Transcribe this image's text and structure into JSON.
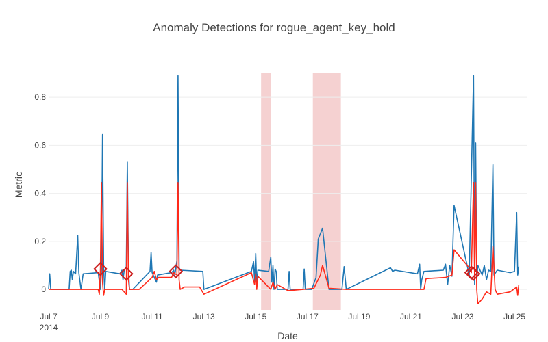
{
  "chart_data": {
    "type": "line",
    "title": "Anomaly Detections for rogue_agent_key_hold",
    "xlabel": "Date",
    "ylabel": "Metric",
    "xlim": [
      "2014-07-07",
      "2014-07-25 12:00"
    ],
    "ylim": [
      -0.085,
      0.9
    ],
    "x_ticks": [
      {
        "date": "2014-07-07",
        "label": "Jul 7",
        "sublabel": "2014"
      },
      {
        "date": "2014-07-09",
        "label": "Jul 9"
      },
      {
        "date": "2014-07-11",
        "label": "Jul 11"
      },
      {
        "date": "2014-07-13",
        "label": "Jul 13"
      },
      {
        "date": "2014-07-15",
        "label": "Jul 15"
      },
      {
        "date": "2014-07-17",
        "label": "Jul 17"
      },
      {
        "date": "2014-07-19",
        "label": "Jul 19"
      },
      {
        "date": "2014-07-21",
        "label": "Jul 21"
      },
      {
        "date": "2014-07-23",
        "label": "Jul 23"
      },
      {
        "date": "2014-07-25",
        "label": "Jul 25"
      }
    ],
    "y_ticks": [
      {
        "value": 0,
        "label": "0"
      },
      {
        "value": 0.2,
        "label": "0.2"
      },
      {
        "value": 0.4,
        "label": "0.4"
      },
      {
        "value": 0.6,
        "label": "0.6"
      },
      {
        "value": 0.8,
        "label": "0.8"
      }
    ],
    "grid": true,
    "colors": {
      "metric": "#1f77b4",
      "score": "#ff2a1a",
      "anomaly": "#cc1f1f",
      "shade": "#f4cccc",
      "grid": "#eeeeee"
    },
    "shaded_regions": [
      {
        "x0": "2014-07-15 05:00",
        "x1": "2014-07-15 14:00"
      },
      {
        "x0": "2014-07-17 05:00",
        "x1": "2014-07-18 07:00"
      }
    ],
    "series": [
      {
        "key": "metric",
        "points": [
          [
            "2014-07-07 00:00",
            0.0
          ],
          [
            "2014-07-07 01:00",
            0.065
          ],
          [
            "2014-07-07 02:00",
            0.0
          ],
          [
            "2014-07-07 19:00",
            0.0
          ],
          [
            "2014-07-07 20:00",
            0.075
          ],
          [
            "2014-07-07 21:00",
            0.08
          ],
          [
            "2014-07-07 22:00",
            0.04
          ],
          [
            "2014-07-07 23:00",
            0.075
          ],
          [
            "2014-07-08 01:00",
            0.065
          ],
          [
            "2014-07-08 03:00",
            0.225
          ],
          [
            "2014-07-08 04:00",
            0.07
          ],
          [
            "2014-07-08 06:00",
            0.0
          ],
          [
            "2014-07-08 08:00",
            0.065
          ],
          [
            "2014-07-08 22:00",
            0.07
          ],
          [
            "2014-07-09 00:00",
            0.0
          ],
          [
            "2014-07-09 01:00",
            0.085
          ],
          [
            "2014-07-09 02:00",
            0.645
          ],
          [
            "2014-07-09 03:00",
            0.09
          ],
          [
            "2014-07-09 04:00",
            0.0
          ],
          [
            "2014-07-09 05:00",
            0.075
          ],
          [
            "2014-07-09 18:00",
            0.065
          ],
          [
            "2014-07-09 20:00",
            0.08
          ],
          [
            "2014-07-09 21:00",
            0.04
          ],
          [
            "2014-07-09 22:00",
            0.075
          ],
          [
            "2014-07-10 00:00",
            0.095
          ],
          [
            "2014-07-10 01:00",
            0.53
          ],
          [
            "2014-07-10 02:00",
            0.09
          ],
          [
            "2014-07-10 03:00",
            0.0
          ],
          [
            "2014-07-10 06:00",
            0.0
          ],
          [
            "2014-07-10 22:00",
            0.075
          ],
          [
            "2014-07-10 23:00",
            0.155
          ],
          [
            "2014-07-11 00:00",
            0.07
          ],
          [
            "2014-07-11 04:00",
            0.03
          ],
          [
            "2014-07-11 05:00",
            0.06
          ],
          [
            "2014-07-11 18:00",
            0.07
          ],
          [
            "2014-07-11 20:00",
            0.08
          ],
          [
            "2014-07-11 21:00",
            0.06
          ],
          [
            "2014-07-11 23:00",
            0.12
          ],
          [
            "2014-07-12 00:00",
            0.89
          ],
          [
            "2014-07-12 01:00",
            0.09
          ],
          [
            "2014-07-12 02:00",
            0.08
          ],
          [
            "2014-07-12 23:00",
            0.075
          ],
          [
            "2014-07-13 00:00",
            0.0
          ],
          [
            "2014-07-14 20:00",
            0.075
          ],
          [
            "2014-07-14 22:00",
            0.115
          ],
          [
            "2014-07-14 23:00",
            0.035
          ],
          [
            "2014-07-15 00:00",
            0.15
          ],
          [
            "2014-07-15 01:00",
            0.02
          ],
          [
            "2014-07-15 02:00",
            0.08
          ],
          [
            "2014-07-15 12:00",
            0.075
          ],
          [
            "2014-07-15 14:00",
            0.135
          ],
          [
            "2014-07-15 15:00",
            0.03
          ],
          [
            "2014-07-15 16:00",
            0.1
          ],
          [
            "2014-07-15 17:00",
            0.0
          ],
          [
            "2014-07-15 18:00",
            0.085
          ],
          [
            "2014-07-15 19:00",
            0.075
          ],
          [
            "2014-07-15 20:00",
            0.0
          ],
          [
            "2014-07-16 06:00",
            0.0
          ],
          [
            "2014-07-16 07:00",
            0.075
          ],
          [
            "2014-07-16 08:00",
            0.0
          ],
          [
            "2014-07-16 20:00",
            0.0
          ],
          [
            "2014-07-16 21:00",
            0.085
          ],
          [
            "2014-07-16 22:00",
            0.0
          ],
          [
            "2014-07-17 04:00",
            0.0
          ],
          [
            "2014-07-17 08:00",
            0.05
          ],
          [
            "2014-07-17 10:00",
            0.21
          ],
          [
            "2014-07-17 14:00",
            0.255
          ],
          [
            "2014-07-17 20:00",
            0.0
          ],
          [
            "2014-07-18 08:00",
            0.0
          ],
          [
            "2014-07-18 10:00",
            0.095
          ],
          [
            "2014-07-18 12:00",
            0.0
          ],
          [
            "2014-07-20 05:00",
            0.09
          ],
          [
            "2014-07-20 07:00",
            0.075
          ],
          [
            "2014-07-20 09:00",
            0.08
          ],
          [
            "2014-07-21 06:00",
            0.065
          ],
          [
            "2014-07-21 08:00",
            0.105
          ],
          [
            "2014-07-21 09:00",
            0.0
          ],
          [
            "2014-07-21 10:00",
            0.04
          ],
          [
            "2014-07-21 12:00",
            0.075
          ],
          [
            "2014-07-22 06:00",
            0.08
          ],
          [
            "2014-07-22 08:00",
            0.105
          ],
          [
            "2014-07-22 10:00",
            0.02
          ],
          [
            "2014-07-22 12:00",
            0.1
          ],
          [
            "2014-07-22 14:00",
            0.055
          ],
          [
            "2014-07-22 16:00",
            0.35
          ],
          [
            "2014-07-23 06:00",
            0.06
          ],
          [
            "2014-07-23 10:00",
            0.89
          ],
          [
            "2014-07-23 11:00",
            0.02
          ],
          [
            "2014-07-23 12:00",
            0.61
          ],
          [
            "2014-07-23 13:00",
            0.04
          ],
          [
            "2014-07-23 14:00",
            0.1
          ],
          [
            "2014-07-23 18:00",
            0.06
          ],
          [
            "2014-07-23 20:00",
            0.1
          ],
          [
            "2014-07-23 22:00",
            0.04
          ],
          [
            "2014-07-24 00:00",
            0.08
          ],
          [
            "2014-07-24 02:00",
            0.075
          ],
          [
            "2014-07-24 04:00",
            0.52
          ],
          [
            "2014-07-24 05:00",
            0.06
          ],
          [
            "2014-07-24 08:00",
            0.08
          ],
          [
            "2014-07-24 20:00",
            0.07
          ],
          [
            "2014-07-25 00:00",
            0.075
          ],
          [
            "2014-07-25 02:00",
            0.32
          ],
          [
            "2014-07-25 03:00",
            0.06
          ],
          [
            "2014-07-25 04:00",
            0.095
          ]
        ]
      },
      {
        "key": "score",
        "points": [
          [
            "2014-07-07 00:00",
            0.0
          ],
          [
            "2014-07-08 22:00",
            0.0
          ],
          [
            "2014-07-08 23:00",
            -0.02
          ],
          [
            "2014-07-09 00:00",
            0.085
          ],
          [
            "2014-07-09 01:00",
            0.445
          ],
          [
            "2014-07-09 02:00",
            0.03
          ],
          [
            "2014-07-09 03:00",
            -0.025
          ],
          [
            "2014-07-09 04:00",
            0.0
          ],
          [
            "2014-07-09 20:00",
            0.0
          ],
          [
            "2014-07-10 00:00",
            -0.02
          ],
          [
            "2014-07-10 01:00",
            0.445
          ],
          [
            "2014-07-10 02:00",
            0.04
          ],
          [
            "2014-07-10 03:00",
            0.0
          ],
          [
            "2014-07-10 12:00",
            0.0
          ],
          [
            "2014-07-11 00:00",
            0.05
          ],
          [
            "2014-07-11 02:00",
            0.075
          ],
          [
            "2014-07-11 04:00",
            0.04
          ],
          [
            "2014-07-11 06:00",
            0.05
          ],
          [
            "2014-07-11 18:00",
            0.05
          ],
          [
            "2014-07-11 20:00",
            0.07
          ],
          [
            "2014-07-11 23:00",
            0.06
          ],
          [
            "2014-07-12 00:00",
            0.445
          ],
          [
            "2014-07-12 01:00",
            0.04
          ],
          [
            "2014-07-12 02:00",
            0.0
          ],
          [
            "2014-07-12 06:00",
            0.01
          ],
          [
            "2014-07-12 20:00",
            0.01
          ],
          [
            "2014-07-13 00:00",
            -0.02
          ],
          [
            "2014-07-14 20:00",
            0.07
          ],
          [
            "2014-07-14 23:00",
            0.02
          ],
          [
            "2014-07-15 00:00",
            0.065
          ],
          [
            "2014-07-15 01:00",
            0.0
          ],
          [
            "2014-07-15 02:00",
            0.055
          ],
          [
            "2014-07-15 14:00",
            0.0
          ],
          [
            "2014-07-15 16:00",
            0.03
          ],
          [
            "2014-07-15 18:00",
            0.0
          ],
          [
            "2014-07-15 20:00",
            0.02
          ],
          [
            "2014-07-16 06:00",
            -0.005
          ],
          [
            "2014-07-16 20:00",
            0.0
          ],
          [
            "2014-07-17 06:00",
            0.005
          ],
          [
            "2014-07-17 12:00",
            0.06
          ],
          [
            "2014-07-17 14:00",
            0.1
          ],
          [
            "2014-07-17 20:00",
            0.005
          ],
          [
            "2014-07-18 12:00",
            0.0
          ],
          [
            "2014-07-20 05:00",
            0.0
          ],
          [
            "2014-07-21 12:00",
            0.0
          ],
          [
            "2014-07-21 14:00",
            0.045
          ],
          [
            "2014-07-22 08:00",
            0.05
          ],
          [
            "2014-07-22 14:00",
            0.06
          ],
          [
            "2014-07-22 16:00",
            0.165
          ],
          [
            "2014-07-23 06:00",
            0.09
          ],
          [
            "2014-07-23 08:00",
            0.07
          ],
          [
            "2014-07-23 10:00",
            0.445
          ],
          [
            "2014-07-23 11:00",
            0.04
          ],
          [
            "2014-07-23 12:00",
            0.445
          ],
          [
            "2014-07-23 13:00",
            0.0
          ],
          [
            "2014-07-23 14:00",
            -0.06
          ],
          [
            "2014-07-23 18:00",
            -0.04
          ],
          [
            "2014-07-23 22:00",
            -0.01
          ],
          [
            "2014-07-24 02:00",
            -0.02
          ],
          [
            "2014-07-24 04:00",
            0.18
          ],
          [
            "2014-07-24 06:00",
            0.0
          ],
          [
            "2014-07-24 08:00",
            -0.02
          ],
          [
            "2014-07-24 20:00",
            -0.01
          ],
          [
            "2014-07-25 02:00",
            0.01
          ],
          [
            "2014-07-25 03:00",
            -0.025
          ],
          [
            "2014-07-25 04:00",
            0.02
          ]
        ]
      }
    ],
    "anomaly_markers": [
      [
        "2014-07-09 00:00",
        0.085
      ],
      [
        "2014-07-10 00:00",
        0.065
      ],
      [
        "2014-07-11 22:00",
        0.075
      ],
      [
        "2014-07-23 08:00",
        0.07
      ],
      [
        "2014-07-23 10:00",
        0.065
      ]
    ]
  }
}
